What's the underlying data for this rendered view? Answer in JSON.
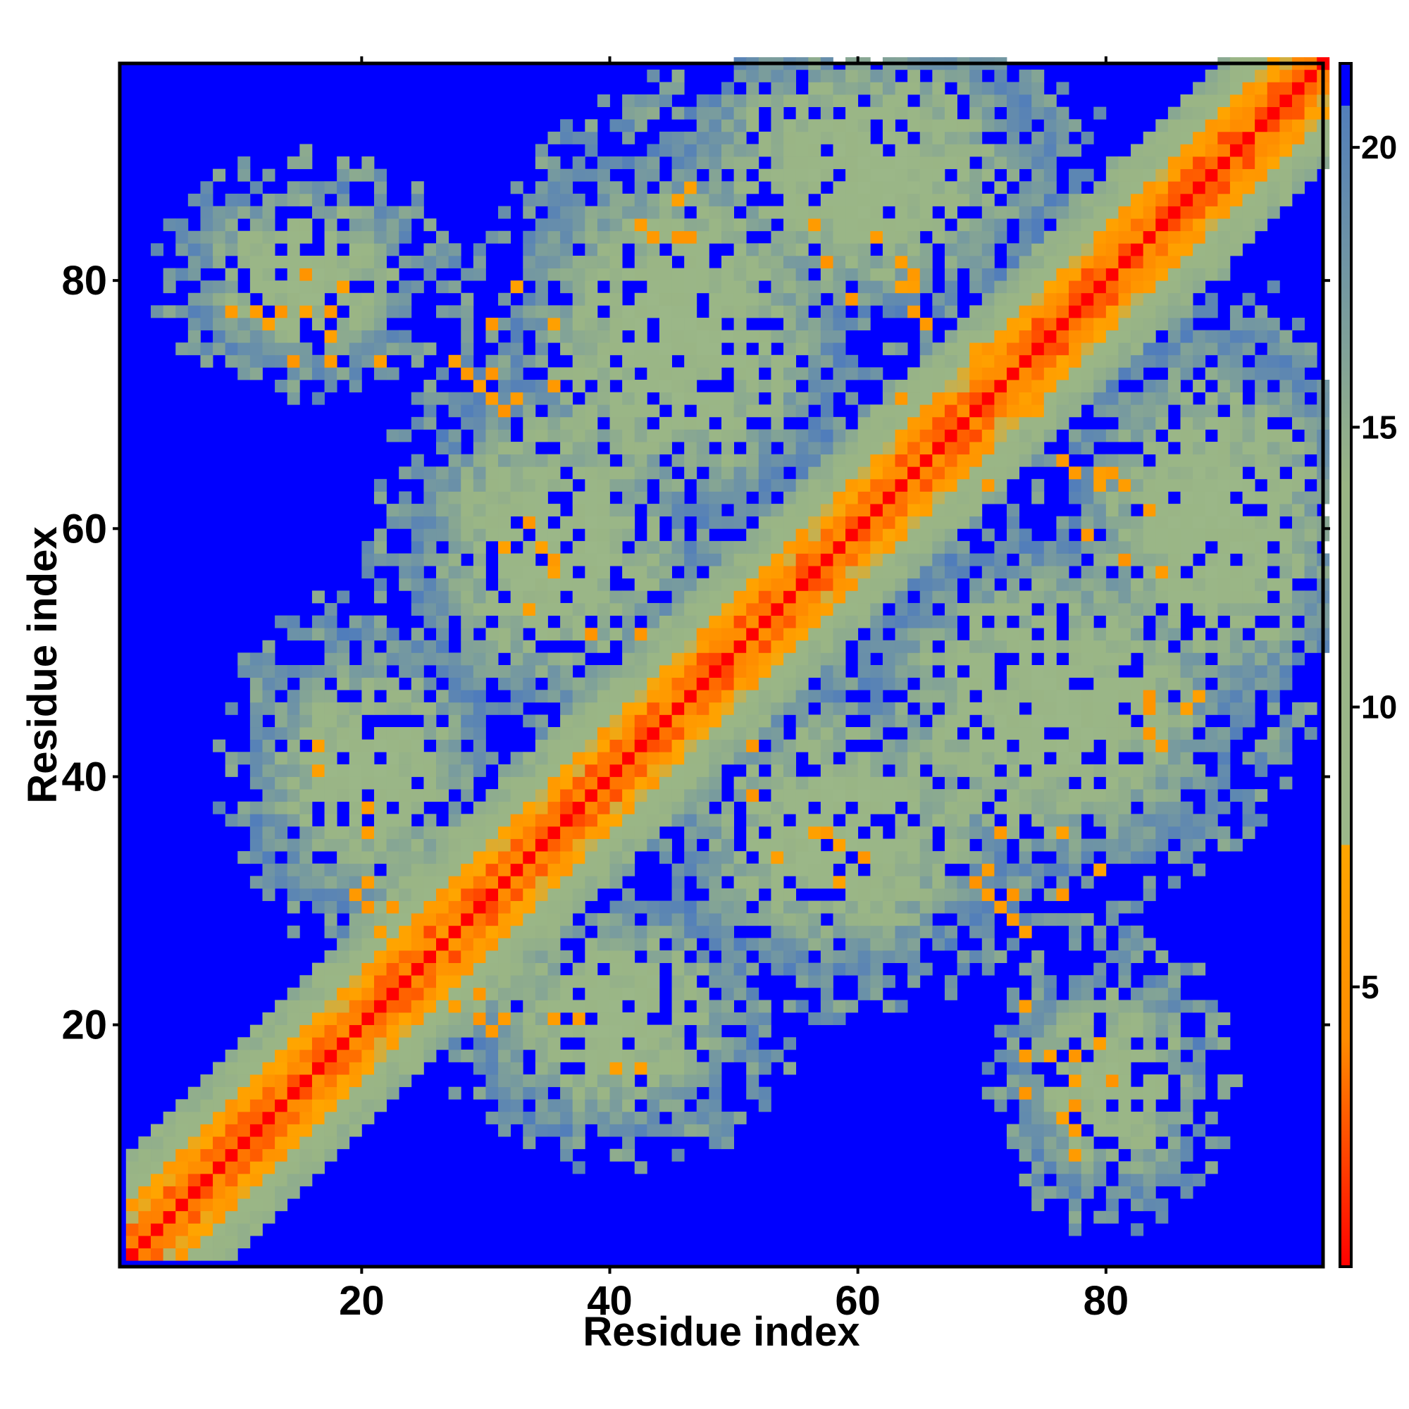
{
  "chart_data": {
    "type": "heatmap",
    "title": "",
    "xlabel": "Residue index",
    "ylabel": "Residue index",
    "n_residues": 97,
    "xlim": [
      1,
      97
    ],
    "ylim": [
      1,
      97
    ],
    "x_ticks": [
      20,
      40,
      60,
      80
    ],
    "y_ticks": [
      20,
      40,
      60,
      80
    ],
    "x_tick_labels": [
      "20",
      "40",
      "60",
      "80"
    ],
    "y_tick_labels": [
      "20",
      "40",
      "60",
      "80"
    ],
    "colorbar": {
      "range": [
        0,
        21.5
      ],
      "ticks": [
        5,
        10,
        15,
        20
      ],
      "tick_labels": [
        "5",
        "10",
        "15",
        "20"
      ],
      "stops": [
        {
          "value": 0,
          "color": "#ff0000"
        },
        {
          "value": 4,
          "color": "#ff8c00"
        },
        {
          "value": 7.5,
          "color": "#ffa500"
        },
        {
          "value": 8.2,
          "color": "#9bb88a"
        },
        {
          "value": 14,
          "color": "#9ab585"
        },
        {
          "value": 21.5,
          "color": "#4a78c0"
        }
      ],
      "cutoff_value": 21,
      "cutoff_color": "#0000ff"
    },
    "grid": false,
    "symmetric": true,
    "diagonal_value": 0,
    "secondary_structure_contacts": [
      {
        "segment_a": [
          1,
          40
        ],
        "segment_b": [
          1,
          40
        ],
        "kind": "helix-diagonal"
      },
      {
        "segment_a": [
          47,
          97
        ],
        "segment_b": [
          47,
          97
        ],
        "kind": "helix-diagonal"
      },
      {
        "segment_a": [
          20,
          32
        ],
        "segment_b": [
          20,
          32
        ],
        "kind": "branch"
      },
      {
        "segment_a": [
          63,
          73
        ],
        "segment_b": [
          63,
          73
        ],
        "kind": "branch"
      }
    ],
    "close_contacts": [
      [
        9,
        77
      ],
      [
        11,
        77
      ],
      [
        12,
        76
      ],
      [
        13,
        77
      ],
      [
        14,
        73
      ],
      [
        15,
        80
      ],
      [
        17,
        77
      ],
      [
        17,
        75
      ],
      [
        17,
        73
      ],
      [
        21,
        73
      ],
      [
        27,
        73
      ],
      [
        28,
        72
      ],
      [
        29,
        71
      ],
      [
        30,
        70
      ],
      [
        31,
        69
      ],
      [
        30,
        76
      ],
      [
        35,
        71
      ],
      [
        35,
        76
      ],
      [
        43,
        83
      ],
      [
        45,
        83
      ],
      [
        46,
        83
      ],
      [
        45,
        86
      ],
      [
        59,
        78
      ],
      [
        63,
        79
      ],
      [
        65,
        76
      ],
      [
        66,
        69
      ],
      [
        64,
        80
      ],
      [
        63,
        70
      ],
      [
        73,
        70
      ],
      [
        74,
        69
      ],
      [
        77,
        64
      ],
      [
        79,
        64
      ],
      [
        81,
        63
      ],
      [
        83,
        61
      ],
      [
        84,
        56
      ],
      [
        81,
        57
      ],
      [
        83,
        45
      ],
      [
        87,
        46
      ],
      [
        84,
        42
      ],
      [
        79,
        32
      ],
      [
        72,
        30
      ],
      [
        71,
        29
      ],
      [
        70,
        32
      ],
      [
        60,
        33
      ],
      [
        57,
        35
      ],
      [
        53,
        33
      ],
      [
        46,
        43
      ],
      [
        44,
        46
      ],
      [
        42,
        51
      ],
      [
        38,
        51
      ],
      [
        35,
        56
      ],
      [
        34,
        58
      ],
      [
        31,
        58
      ],
      [
        33,
        53
      ],
      [
        20,
        29
      ],
      [
        21,
        27
      ],
      [
        22,
        25
      ],
      [
        26,
        24
      ],
      [
        29,
        22
      ],
      [
        31,
        20
      ],
      [
        27,
        26
      ],
      [
        30,
        19
      ],
      [
        35,
        20
      ],
      [
        37,
        20
      ],
      [
        40,
        16
      ],
      [
        42,
        16
      ],
      [
        76,
        12
      ],
      [
        77,
        13
      ],
      [
        77,
        15
      ],
      [
        79,
        18
      ]
    ]
  }
}
